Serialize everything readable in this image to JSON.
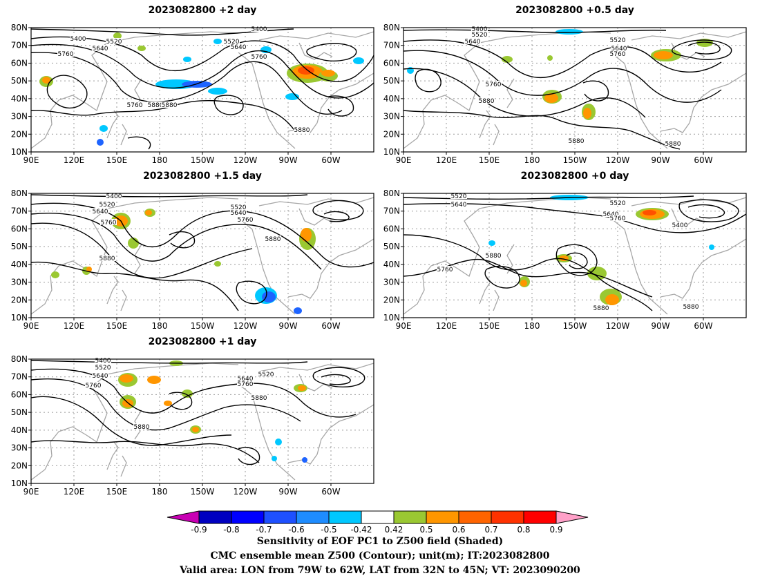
{
  "panels": [
    {
      "id": "p2d",
      "title": "2023082800 +2 day",
      "contour_labels": [
        "5400",
        "5520",
        "5640",
        "5760",
        "5760",
        "5880",
        "5400",
        "5520",
        "5640",
        "5760",
        "5880",
        "5880"
      ],
      "features": "trough near 140E, ridge near 150W, strong trough over eastern North America"
    },
    {
      "id": "p05d",
      "title": "2023082800 +0.5 day",
      "contour_labels": [
        "5400",
        "5520",
        "5640",
        "5760",
        "5880",
        "5880",
        "5520",
        "5640",
        "5760",
        "5880"
      ],
      "features": "deep low near 70W 70N"
    },
    {
      "id": "p15d",
      "title": "2023082800 +1.5 day",
      "contour_labels": [
        "5400",
        "5520",
        "5640",
        "5760",
        "5880",
        "5520",
        "5640",
        "5760",
        "5880"
      ],
      "features": "trough near 160E"
    },
    {
      "id": "p0d",
      "title": "2023082800 +0 day",
      "contour_labels": [
        "5520",
        "5640",
        "5880",
        "5760",
        "5520",
        "5640",
        "5760",
        "5400",
        "5880",
        "5880"
      ],
      "features": "cut-off low near 140W 44N"
    },
    {
      "id": "p1d",
      "title": "2023082800 +1 day",
      "contour_labels": [
        "5400",
        "5520",
        "5640",
        "5760",
        "5880",
        "5640",
        "5760",
        "5520",
        "5880"
      ],
      "features": "troughs near 150E and 130W"
    }
  ],
  "axes": {
    "lat_labels": [
      "80N",
      "70N",
      "60N",
      "50N",
      "40N",
      "30N",
      "20N",
      "10N"
    ],
    "lon_labels": [
      "90E",
      "120E",
      "150E",
      "180",
      "150W",
      "120W",
      "90W",
      "60W"
    ]
  },
  "colorbar": {
    "tick_labels": [
      "-0.9",
      "-0.8",
      "-0.7",
      "-0.6",
      "-0.5",
      "-0.42",
      "0.42",
      "0.5",
      "0.6",
      "0.7",
      "0.8",
      "0.9"
    ],
    "colors": [
      "#0000c0",
      "#0000ff",
      "#1e50ff",
      "#1e8cff",
      "#00c8ff",
      "#ffffff",
      "#9ac832",
      "#ff9600",
      "#ff6400",
      "#ff3200",
      "#ff0000"
    ],
    "left_arrow_color": "#c800b4",
    "right_arrow_color": "#ffa0c8"
  },
  "shading_colors": {
    "pos_green": "#9ac832",
    "pos_orange": "#ff9600",
    "pos_red": "#ff5000",
    "neg_cyan": "#00c8ff",
    "neg_blue": "#1e64ff"
  },
  "caption": {
    "line1": "Sensitivity of EOF PC1 to Z500 field (Shaded)",
    "line2": "CMC ensemble mean Z500 (Contour); unit(m); IT:2023082800",
    "line3": "Valid area: LON from 79W to 62W, LAT from 32N to 45N; VT: 2023090200"
  }
}
